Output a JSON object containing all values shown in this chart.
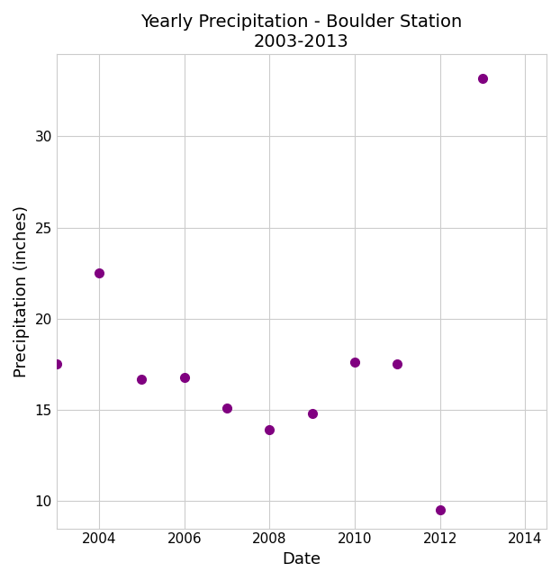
{
  "title_line1": "Yearly Precipitation - Boulder Station",
  "title_line2": "2003-2013",
  "xlabel": "Date",
  "ylabel": "Precipitation (inches)",
  "x_years": [
    2003,
    2004,
    2005,
    2006,
    2007,
    2008,
    2009,
    2010,
    2011,
    2012,
    2013
  ],
  "y_values": [
    17.5,
    22.5,
    16.7,
    16.8,
    15.1,
    13.9,
    14.8,
    17.6,
    17.5,
    9.5,
    33.2
  ],
  "marker_color": "#800080",
  "marker_size": 7,
  "xlim": [
    2003.0,
    2014.5
  ],
  "ylim": [
    8.5,
    34.5
  ],
  "xticks": [
    2004,
    2006,
    2008,
    2010,
    2012,
    2014
  ],
  "yticks": [
    10,
    15,
    20,
    25,
    30
  ],
  "background_color": "#ffffff",
  "grid_color": "#cccccc",
  "title_fontsize": 14,
  "axis_label_fontsize": 13,
  "tick_fontsize": 11
}
